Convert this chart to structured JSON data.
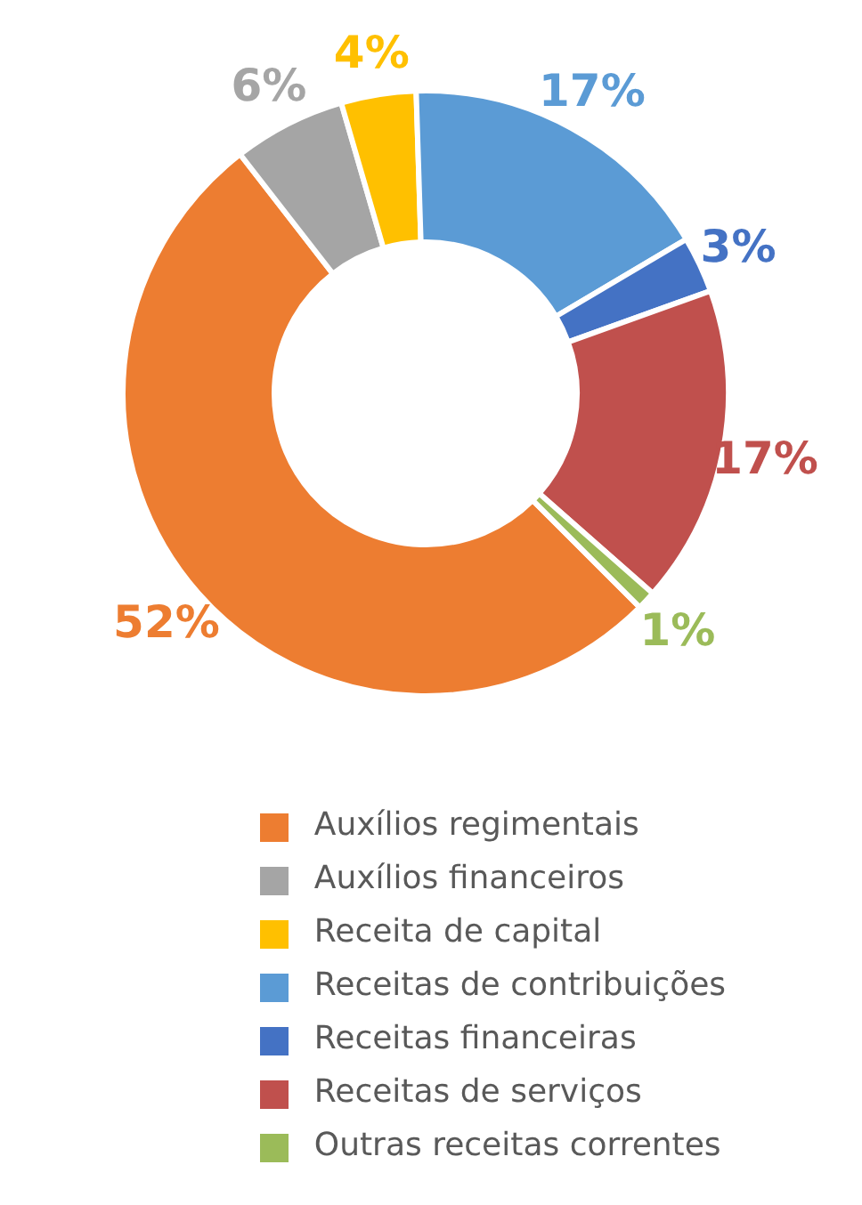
{
  "chart_data": {
    "type": "donut",
    "categories": [
      "Auxílios regimentais",
      "Auxílios financeiros",
      "Receita de capital",
      "Receitas de contribuições",
      "Receitas financeiras",
      "Receitas de serviços",
      "Outras receitas correntes"
    ],
    "values": [
      52,
      6,
      4,
      17,
      3,
      17,
      1
    ],
    "colors": [
      "#ed7d31",
      "#a5a5a5",
      "#ffc000",
      "#5b9bd5",
      "#4472c4",
      "#c0504d",
      "#9bbb59"
    ],
    "value_labels": [
      "52%",
      "6%",
      "4%",
      "17%",
      "3%",
      "17%",
      "1%"
    ],
    "legend": "bottom"
  }
}
